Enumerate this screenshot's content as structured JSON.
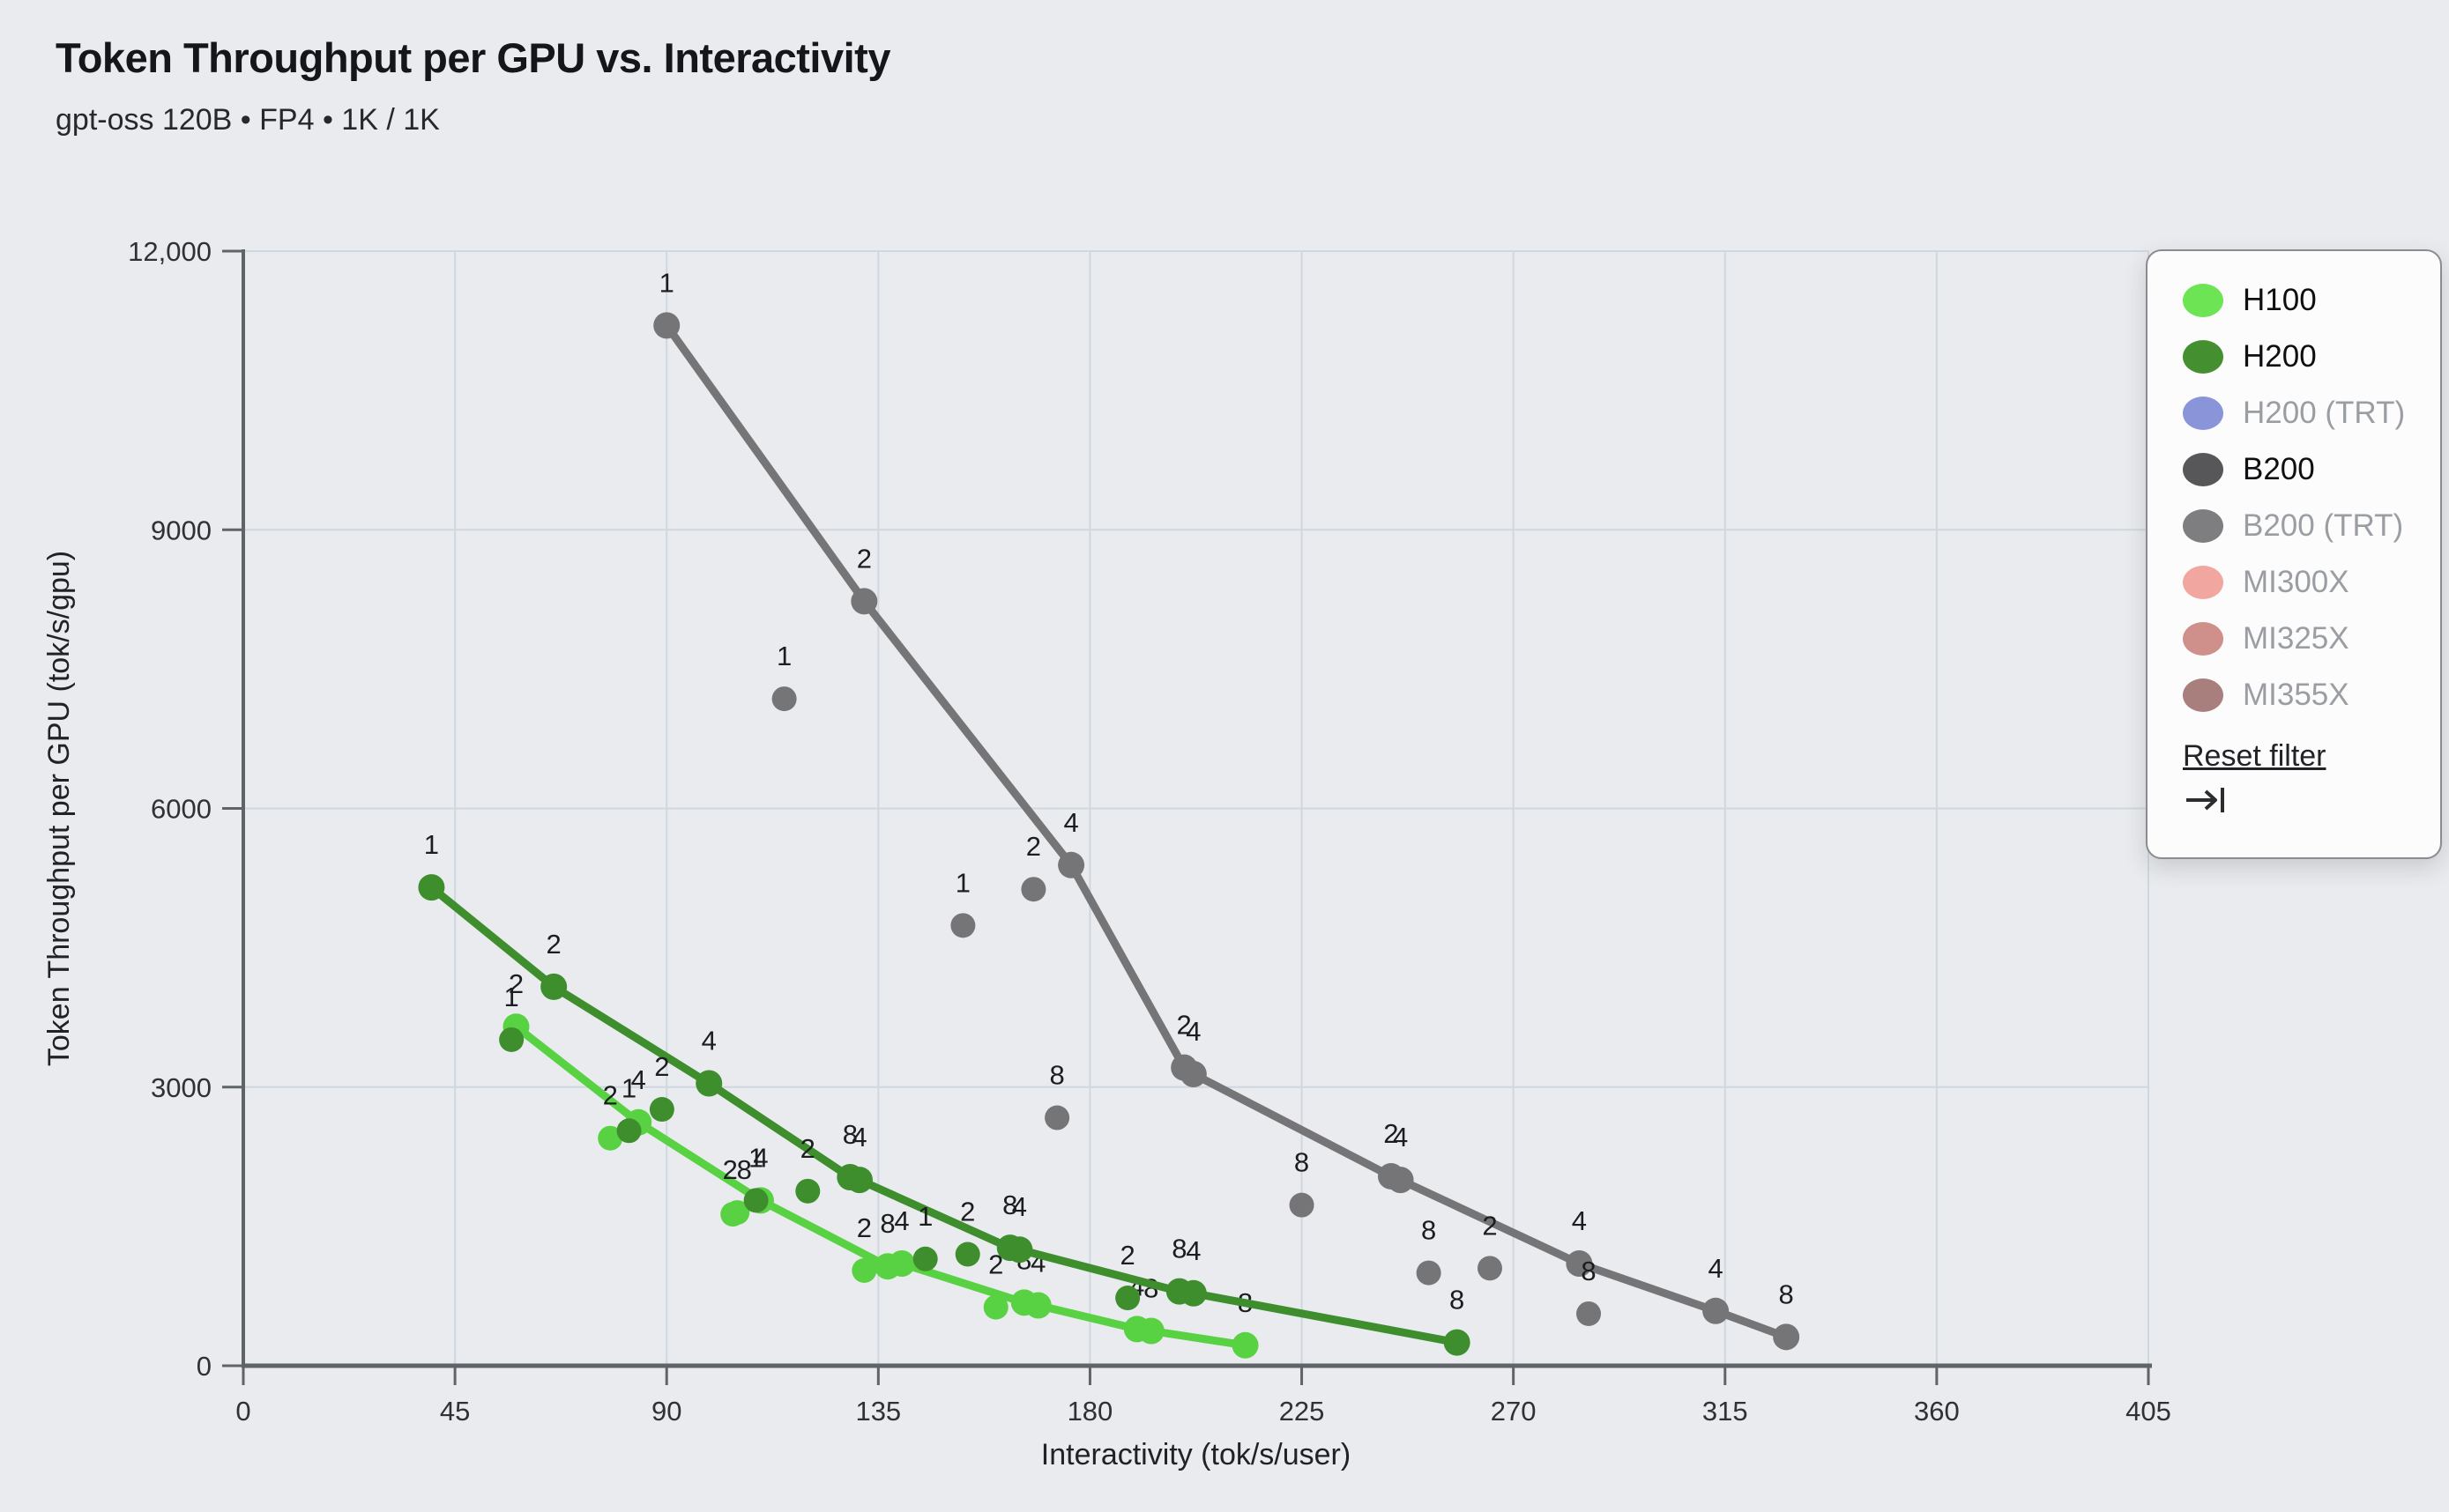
{
  "header": {
    "title": "Token Throughput per GPU vs. Interactivity",
    "subtitle": "gpt-oss 120B • FP4 • 1K / 1K"
  },
  "chart_data": {
    "type": "scatter",
    "title": "Token Throughput per GPU vs. Interactivity",
    "xlabel": "Interactivity (tok/s/user)",
    "ylabel": "Token Throughput per GPU (tok/s/gpu)",
    "xlim": [
      0,
      405
    ],
    "ylim": [
      0,
      12000
    ],
    "xticks": [
      0,
      45,
      90,
      135,
      180,
      225,
      270,
      315,
      360,
      405
    ],
    "yticks": [
      0,
      3000,
      6000,
      9000,
      12000
    ],
    "ytick_labels": [
      "0",
      "3000",
      "6000",
      "9000",
      "12,000"
    ],
    "grid": true,
    "legend_position": "right",
    "point_label_values": [
      "1",
      "2",
      "4",
      "8"
    ],
    "series": [
      {
        "name": "H100",
        "color": "#58d243",
        "line": [
          {
            "x": 58,
            "y": 3650,
            "l": [
              "2"
            ]
          },
          {
            "x": 84,
            "y": 2620,
            "l": [
              "4"
            ]
          },
          {
            "x": 110,
            "y": 1780,
            "l": [
              "4"
            ]
          },
          {
            "x": 137,
            "y": 1070,
            "l": [
              "8"
            ]
          },
          {
            "x": 140,
            "y": 1100,
            "l": [
              "4"
            ]
          },
          {
            "x": 166,
            "y": 680,
            "l": [
              "8"
            ]
          },
          {
            "x": 169,
            "y": 650,
            "l": [
              "4"
            ]
          },
          {
            "x": 190,
            "y": 395,
            "l": [
              "4"
            ]
          },
          {
            "x": 193,
            "y": 375,
            "l": [
              "8"
            ]
          },
          {
            "x": 213,
            "y": 220,
            "l": [
              "8"
            ]
          }
        ],
        "scatter": [
          {
            "x": 78,
            "y": 2450,
            "l": [
              "2"
            ]
          },
          {
            "x": 105,
            "y": 1650,
            "l": [
              "2",
              "8"
            ]
          },
          {
            "x": 132,
            "y": 1025,
            "l": [
              "2"
            ]
          },
          {
            "x": 160,
            "y": 630,
            "l": [
              "2"
            ]
          }
        ]
      },
      {
        "name": "H200",
        "color": "#3e8e2d",
        "line": [
          {
            "x": 40,
            "y": 5150,
            "l": [
              "1"
            ]
          },
          {
            "x": 66,
            "y": 4080,
            "l": [
              "2"
            ]
          },
          {
            "x": 99,
            "y": 3040,
            "l": [
              "4"
            ]
          },
          {
            "x": 129,
            "y": 2030,
            "l": [
              "8"
            ]
          },
          {
            "x": 131,
            "y": 2000,
            "l": [
              "4"
            ]
          },
          {
            "x": 163,
            "y": 1270,
            "l": [
              "8"
            ]
          },
          {
            "x": 165,
            "y": 1250,
            "l": [
              "4"
            ]
          },
          {
            "x": 199,
            "y": 800,
            "l": [
              "8"
            ]
          },
          {
            "x": 202,
            "y": 780,
            "l": [
              "4"
            ]
          },
          {
            "x": 258,
            "y": 250,
            "l": [
              "8"
            ]
          }
        ],
        "scatter": [
          {
            "x": 57,
            "y": 3510,
            "l": [
              "1"
            ]
          },
          {
            "x": 82,
            "y": 2530,
            "l": [
              "1"
            ]
          },
          {
            "x": 89,
            "y": 2760,
            "l": [
              "2"
            ]
          },
          {
            "x": 109,
            "y": 1780,
            "l": [
              "1"
            ]
          },
          {
            "x": 120,
            "y": 1880,
            "l": [
              "2"
            ]
          },
          {
            "x": 145,
            "y": 1150,
            "l": [
              "1"
            ]
          },
          {
            "x": 154,
            "y": 1200,
            "l": [
              "2"
            ]
          },
          {
            "x": 188,
            "y": 730,
            "l": [
              "2"
            ]
          }
        ]
      },
      {
        "name": "B200",
        "color": "#757578",
        "line": [
          {
            "x": 90,
            "y": 11200,
            "l": [
              "1"
            ]
          },
          {
            "x": 132,
            "y": 8230,
            "l": [
              "2"
            ]
          },
          {
            "x": 176,
            "y": 5390,
            "l": [
              "4"
            ]
          },
          {
            "x": 200,
            "y": 3210,
            "l": [
              "2"
            ]
          },
          {
            "x": 202,
            "y": 3140,
            "l": [
              "4"
            ]
          },
          {
            "x": 244,
            "y": 2040,
            "l": [
              "2"
            ]
          },
          {
            "x": 246,
            "y": 2000,
            "l": [
              "4"
            ]
          },
          {
            "x": 284,
            "y": 1100,
            "l": [
              "4"
            ]
          },
          {
            "x": 313,
            "y": 590,
            "l": [
              "4"
            ]
          },
          {
            "x": 328,
            "y": 310,
            "l": [
              "8"
            ]
          }
        ],
        "scatter": [
          {
            "x": 115,
            "y": 7180,
            "l": [
              "1"
            ]
          },
          {
            "x": 153,
            "y": 4740,
            "l": [
              "1"
            ]
          },
          {
            "x": 168,
            "y": 5130,
            "l": [
              "2"
            ]
          },
          {
            "x": 173,
            "y": 2670,
            "l": [
              "8"
            ]
          },
          {
            "x": 225,
            "y": 1730,
            "l": [
              "8"
            ]
          },
          {
            "x": 252,
            "y": 1000,
            "l": [
              "8"
            ]
          },
          {
            "x": 265,
            "y": 1050,
            "l": [
              "2"
            ]
          },
          {
            "x": 286,
            "y": 560,
            "l": [
              "8"
            ]
          }
        ]
      }
    ]
  },
  "legend": {
    "items": [
      {
        "label": "H100",
        "color": "#6ce453",
        "enabled": true
      },
      {
        "label": "H200",
        "color": "#449030",
        "enabled": true
      },
      {
        "label": "H200 (TRT)",
        "color": "#8a95d9",
        "enabled": false
      },
      {
        "label": "B200",
        "color": "#57575a",
        "enabled": true
      },
      {
        "label": "B200 (TRT)",
        "color": "#7e7e81",
        "enabled": false
      },
      {
        "label": "MI300X",
        "color": "#f1a69f",
        "enabled": false
      },
      {
        "label": "MI325X",
        "color": "#cf8f8b",
        "enabled": false
      },
      {
        "label": "MI355X",
        "color": "#a97f7d",
        "enabled": false
      }
    ],
    "reset_label": "Reset filter",
    "collapse_icon": "arrow-to-bar-icon"
  },
  "colors": {
    "page_bg": "#e9ebee",
    "gridline": "#cfd8e0",
    "axis": "#5f6468",
    "tick_text": "#2e3235",
    "point_label": "#1b1d1f"
  }
}
